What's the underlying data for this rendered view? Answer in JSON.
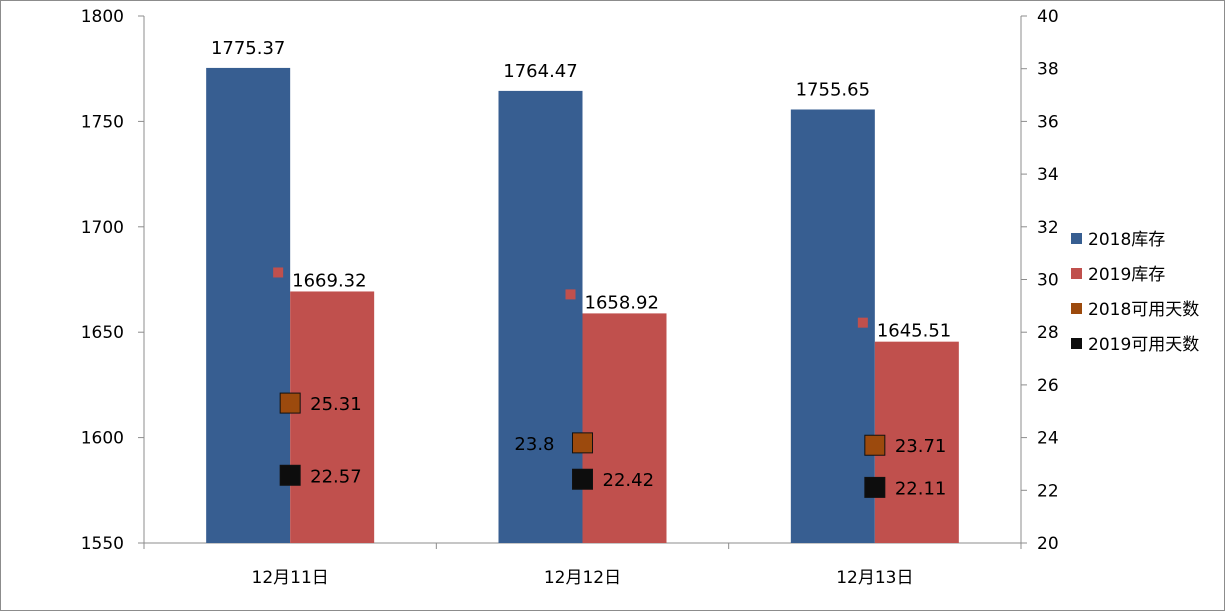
{
  "chart_data": {
    "type": "bar",
    "categories": [
      "12月11日",
      "12月12日",
      "12月13日"
    ],
    "series": [
      {
        "name": "2018库存",
        "kind": "bar",
        "axis": "left",
        "color": "#375e91",
        "values": [
          1775.37,
          1764.47,
          1755.65
        ]
      },
      {
        "name": "2019库存",
        "kind": "bar",
        "axis": "left",
        "color": "#c0504d",
        "values": [
          1669.32,
          1658.92,
          1645.51
        ]
      },
      {
        "name": "2018可用天数",
        "kind": "marker",
        "axis": "right",
        "color": "#9c4a0d",
        "values": [
          25.31,
          23.8,
          23.71
        ]
      },
      {
        "name": "2019可用天数",
        "kind": "marker",
        "axis": "right",
        "color": "#0d0d0d",
        "values": [
          22.57,
          22.42,
          22.11
        ]
      }
    ],
    "y_left": {
      "min": 1550,
      "max": 1800,
      "ticks": [
        1550,
        1600,
        1650,
        1700,
        1750,
        1800
      ]
    },
    "y_right": {
      "min": 20,
      "max": 40,
      "ticks": [
        20,
        22,
        24,
        26,
        28,
        30,
        32,
        34,
        36,
        38,
        40
      ]
    },
    "legend": {
      "position": "right"
    },
    "grid": false
  }
}
